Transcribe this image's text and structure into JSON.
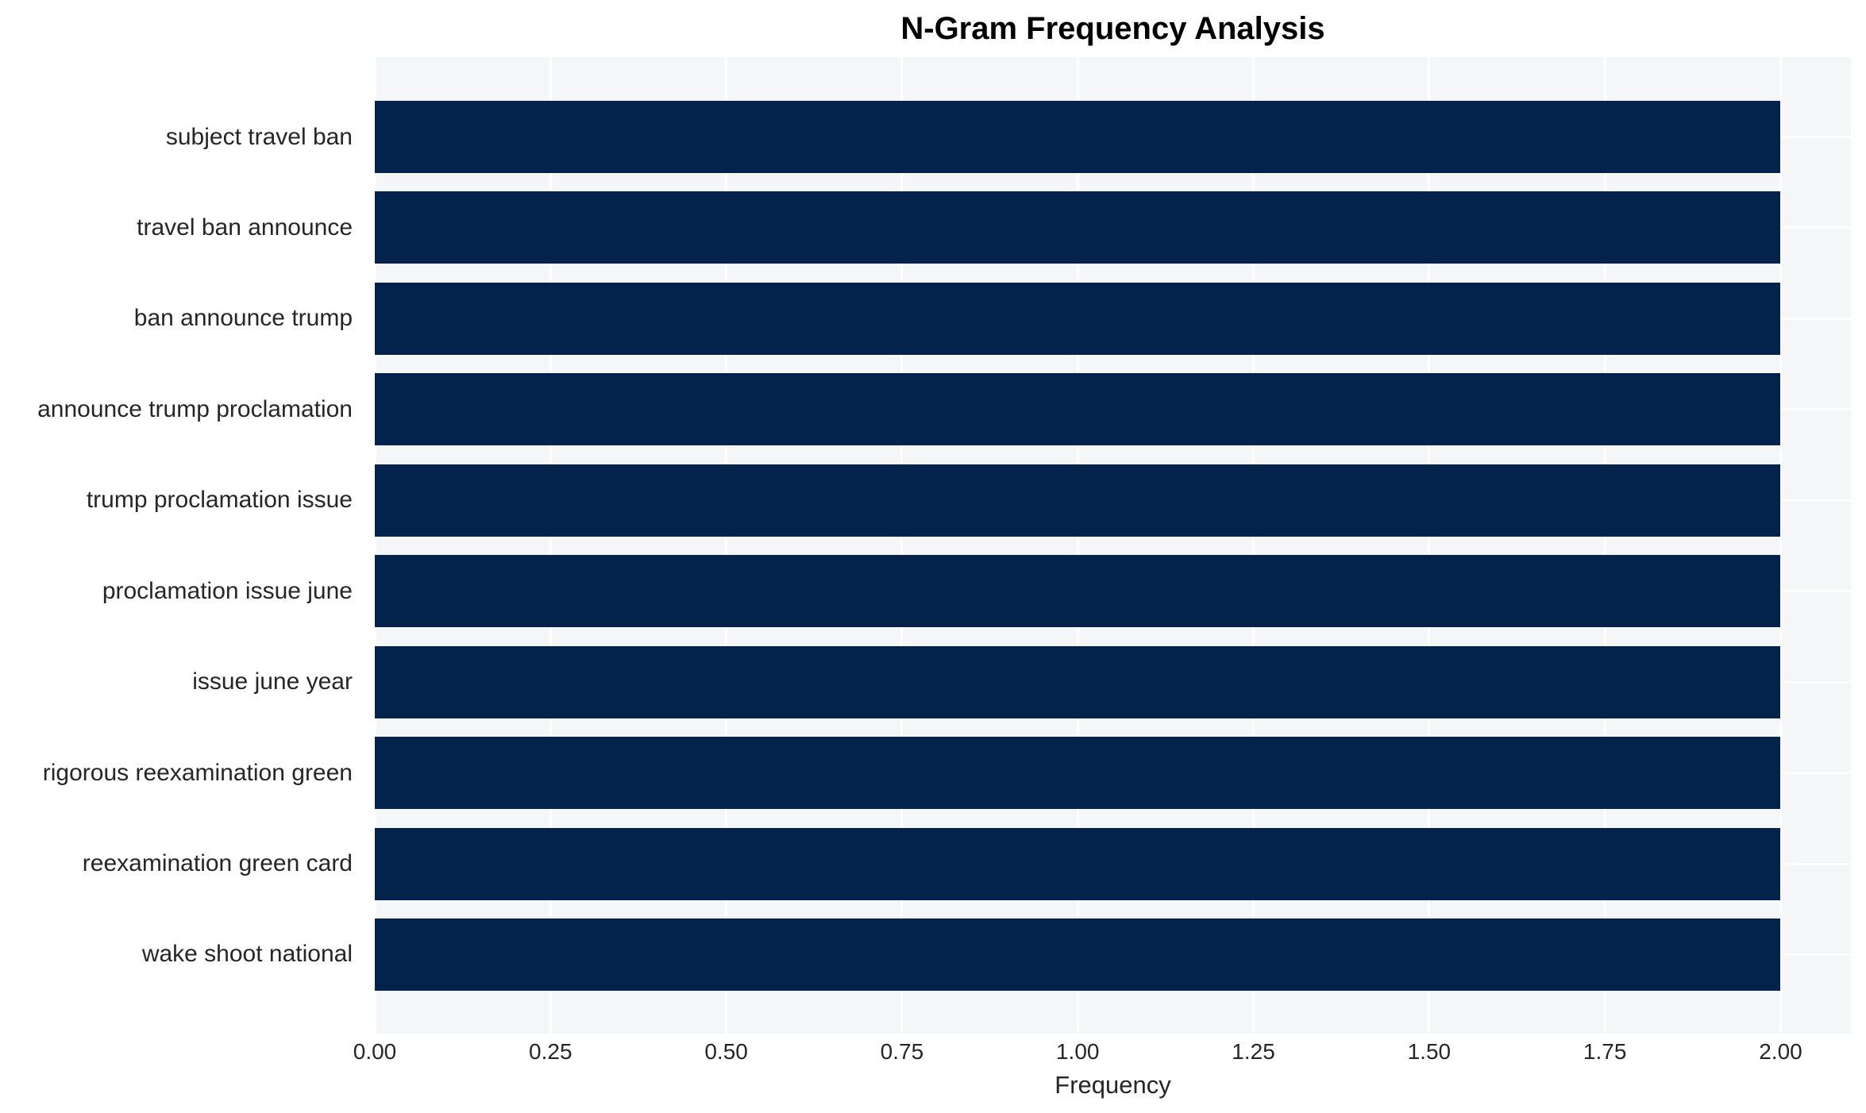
{
  "title": "N-Gram Frequency Analysis",
  "colors": {
    "bar": "#03234d",
    "plot_background": "#f5f6f7",
    "gridline": "#ffffff",
    "tick_text": "#262626",
    "title_text": "#000000"
  },
  "chart_data": {
    "type": "bar",
    "orientation": "horizontal",
    "title": "N-Gram Frequency Analysis",
    "xlabel": "Frequency",
    "ylabel": "",
    "categories": [
      "subject travel ban",
      "travel ban announce",
      "ban announce trump",
      "announce trump proclamation",
      "trump proclamation issue",
      "proclamation issue june",
      "issue june year",
      "rigorous reexamination green",
      "reexamination green card",
      "wake shoot national"
    ],
    "values": [
      2,
      2,
      2,
      2,
      2,
      2,
      2,
      2,
      2,
      2
    ],
    "xlim": [
      0,
      2.1
    ],
    "xtick_values": [
      0,
      0.25,
      0.5,
      0.75,
      1.0,
      1.25,
      1.5,
      1.75,
      2.0
    ],
    "xtick_labels": [
      "0.00",
      "0.25",
      "0.50",
      "0.75",
      "1.00",
      "1.25",
      "1.50",
      "1.75",
      "2.00"
    ],
    "grid": true,
    "legend": false
  }
}
